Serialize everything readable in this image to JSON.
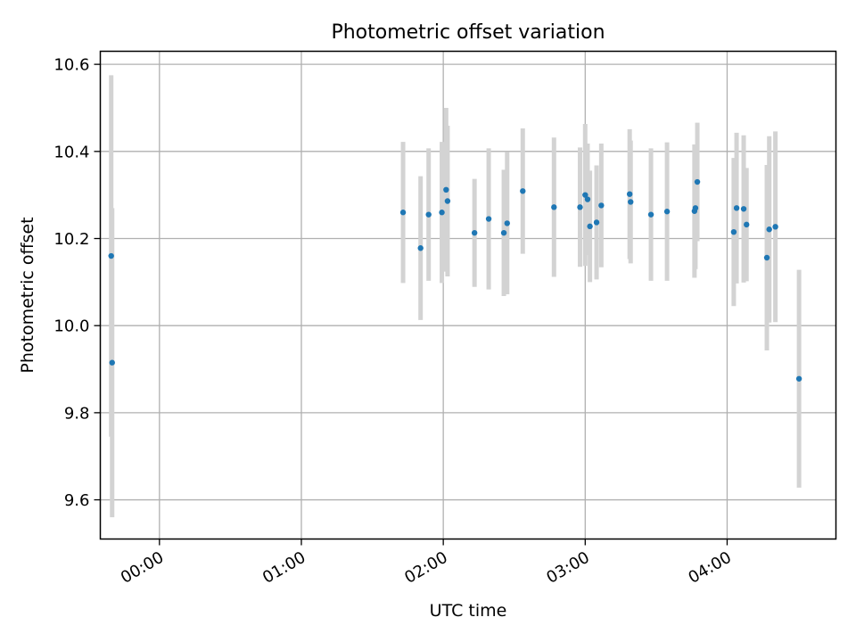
{
  "chart_data": {
    "type": "scatter",
    "title": "Photometric offset variation",
    "xlabel": "UTC time",
    "ylabel": "Photometric offset",
    "x_unit": "UTC time (HH:MM)",
    "xlim": [
      "23:35",
      "04:46"
    ],
    "ylim": [
      9.51,
      10.63
    ],
    "grid": true,
    "error_bar_color": "#d3d3d3",
    "point_color": "#1f77b4",
    "x_ticks": [
      "00:00",
      "01:00",
      "02:00",
      "03:00",
      "04:00"
    ],
    "y_ticks": [
      "9.6",
      "9.8",
      "10.0",
      "10.2",
      "10.4",
      "10.6"
    ],
    "points": [
      {
        "x": "23:39:36",
        "y": 10.16,
        "err": 0.415
      },
      {
        "x": "23:40:00",
        "y": 9.915,
        "err": 0.355
      },
      {
        "x": "01:43:00",
        "y": 10.26,
        "err": 0.162
      },
      {
        "x": "01:50:24",
        "y": 10.178,
        "err": 0.165
      },
      {
        "x": "01:53:48",
        "y": 10.255,
        "err": 0.152
      },
      {
        "x": "01:59:24",
        "y": 10.26,
        "err": 0.162
      },
      {
        "x": "02:01:12",
        "y": 10.312,
        "err": 0.188
      },
      {
        "x": "02:01:48",
        "y": 10.286,
        "err": 0.173
      },
      {
        "x": "02:13:12",
        "y": 10.213,
        "err": 0.124
      },
      {
        "x": "02:19:12",
        "y": 10.245,
        "err": 0.162
      },
      {
        "x": "02:25:36",
        "y": 10.213,
        "err": 0.145
      },
      {
        "x": "02:27:00",
        "y": 10.235,
        "err": 0.163
      },
      {
        "x": "02:33:36",
        "y": 10.309,
        "err": 0.144
      },
      {
        "x": "02:46:48",
        "y": 10.272,
        "err": 0.16
      },
      {
        "x": "02:57:48",
        "y": 10.272,
        "err": 0.137
      },
      {
        "x": "03:00:00",
        "y": 10.3,
        "err": 0.163
      },
      {
        "x": "03:01:00",
        "y": 10.29,
        "err": 0.128
      },
      {
        "x": "03:02:00",
        "y": 10.228,
        "err": 0.128
      },
      {
        "x": "03:04:48",
        "y": 10.237,
        "err": 0.131
      },
      {
        "x": "03:06:48",
        "y": 10.276,
        "err": 0.142
      },
      {
        "x": "03:18:48",
        "y": 10.302,
        "err": 0.149
      },
      {
        "x": "03:19:12",
        "y": 10.284,
        "err": 0.141
      },
      {
        "x": "03:27:48",
        "y": 10.255,
        "err": 0.152
      },
      {
        "x": "03:34:36",
        "y": 10.262,
        "err": 0.159
      },
      {
        "x": "03:46:12",
        "y": 10.263,
        "err": 0.153
      },
      {
        "x": "03:46:36",
        "y": 10.27,
        "err": 0.14
      },
      {
        "x": "03:47:24",
        "y": 10.33,
        "err": 0.136
      },
      {
        "x": "04:02:48",
        "y": 10.215,
        "err": 0.17
      },
      {
        "x": "04:04:00",
        "y": 10.27,
        "err": 0.173
      },
      {
        "x": "04:07:00",
        "y": 10.268,
        "err": 0.169
      },
      {
        "x": "04:08:12",
        "y": 10.232,
        "err": 0.13
      },
      {
        "x": "04:16:48",
        "y": 10.156,
        "err": 0.213
      },
      {
        "x": "04:17:48",
        "y": 10.221,
        "err": 0.214
      },
      {
        "x": "04:20:24",
        "y": 10.227,
        "err": 0.219
      },
      {
        "x": "04:30:24",
        "y": 9.878,
        "err": 0.25
      }
    ]
  }
}
